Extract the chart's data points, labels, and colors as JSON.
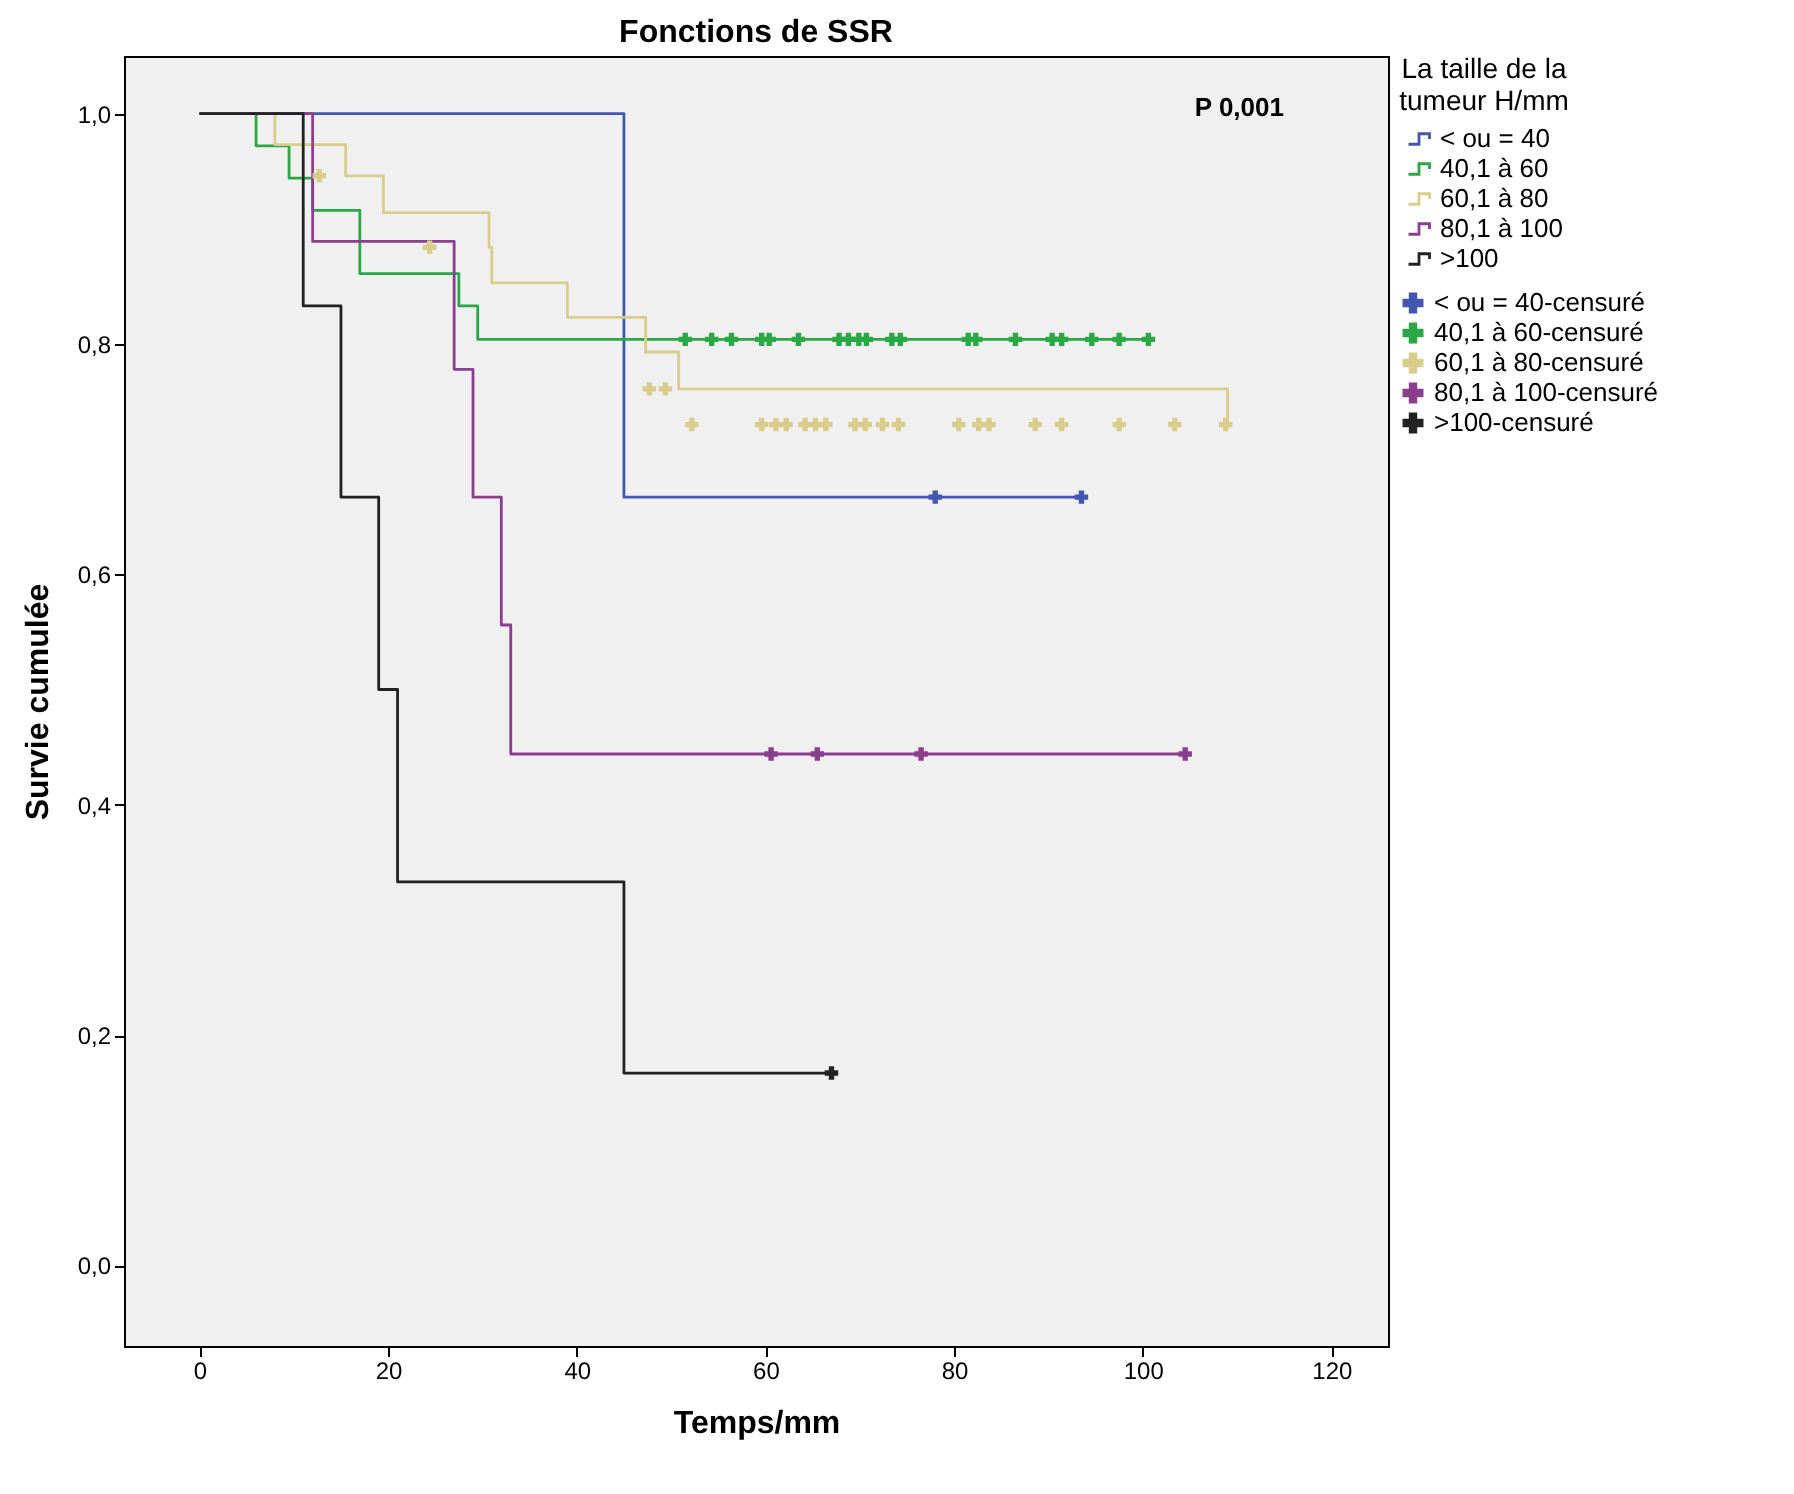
{
  "chart_data": {
    "type": "step",
    "title": "Fonctions de SSR",
    "xlabel": "Temps/mm",
    "ylabel": "Survie cumulée",
    "legend_title": "La taille de la tumeur H/mm",
    "legend": "right",
    "xlim": [
      -8,
      126
    ],
    "xticks": [
      0,
      20,
      40,
      60,
      80,
      100,
      120
    ],
    "ylim": [
      -0.07,
      1.05
    ],
    "yticks": [
      {
        "value": 0,
        "label": "0,0"
      },
      {
        "value": 0.2,
        "label": "0,2"
      },
      {
        "value": 0.4,
        "label": "0,4"
      },
      {
        "value": 0.6,
        "label": "0,6"
      },
      {
        "value": 0.8,
        "label": "0,8"
      },
      {
        "value": 1,
        "label": "1,0"
      }
    ],
    "annotations": [
      "P 0,001"
    ],
    "series": [
      {
        "name": "< ou = 40",
        "color": "#4356b0",
        "x": [
          0,
          45,
          94
        ],
        "values": [
          1,
          0.667,
          0.667
        ]
      },
      {
        "name": "40,1 à 60",
        "color": "#2aa845",
        "x": [
          0,
          6,
          9.5,
          12,
          17,
          27.5,
          29.5,
          101
        ],
        "values": [
          1,
          0.972,
          0.944,
          0.916,
          0.861,
          0.833,
          0.804,
          0.804
        ]
      },
      {
        "name": "60,1 à 80",
        "color": "#d9cd8c",
        "x": [
          0,
          8,
          15.5,
          19.5,
          30.7,
          31,
          39,
          47.3,
          50.8,
          109
        ],
        "values": [
          1,
          0.973,
          0.946,
          0.914,
          0.884,
          0.853,
          0.823,
          0.793,
          0.761,
          0.73
        ]
      },
      {
        "name": "80,1 à 100",
        "color": "#8b3d8e",
        "x": [
          0,
          12,
          27,
          29,
          32,
          33,
          105
        ],
        "values": [
          1,
          0.889,
          0.778,
          0.667,
          0.556,
          0.444,
          0.444
        ]
      },
      {
        "name": ">100",
        "color": "#222222",
        "x": [
          0,
          11,
          15,
          19,
          21,
          45,
          67
        ],
        "values": [
          1,
          0.833,
          0.667,
          0.5,
          0.333,
          0.167,
          0.167
        ]
      },
      {
        "type": "scatter",
        "marker": "cross",
        "name": "< ou = 40-censuré",
        "color": "#4356b0",
        "x": [
          78,
          93.5
        ],
        "values": [
          0.667,
          0.667
        ]
      },
      {
        "type": "scatter",
        "marker": "cross",
        "name": "40,1 à 60-censuré",
        "color": "#2aa845",
        "x": [
          51.5,
          54.3,
          56.4,
          59.6,
          60.4,
          63.5,
          67.8,
          68.8,
          69.9,
          70.7,
          73.4,
          74.3,
          81.5,
          82.3,
          86.5,
          90.4,
          91.4,
          94.6,
          97.5,
          100.6
        ],
        "values": [
          0.804,
          0.804,
          0.804,
          0.804,
          0.804,
          0.804,
          0.804,
          0.804,
          0.804,
          0.804,
          0.804,
          0.804,
          0.804,
          0.804,
          0.804,
          0.804,
          0.804,
          0.804,
          0.804,
          0.804
        ]
      },
      {
        "type": "scatter",
        "marker": "cross",
        "name": "60,1 à 80-censuré",
        "color": "#d9cd8c",
        "x": [
          12.7,
          24.4,
          47.7,
          49.4,
          52.2,
          59.6,
          61.1,
          62.2,
          64.2,
          65.3,
          66.4,
          69.5,
          70.6,
          72.4,
          74.1,
          80.5,
          82.6,
          83.7,
          88.6,
          91.4,
          97.5,
          103.4,
          108.8
        ],
        "values": [
          0.946,
          0.884,
          0.761,
          0.761,
          0.73,
          0.73,
          0.73,
          0.73,
          0.73,
          0.73,
          0.73,
          0.73,
          0.73,
          0.73,
          0.73,
          0.73,
          0.73,
          0.73,
          0.73,
          0.73,
          0.73,
          0.73,
          0.73
        ]
      },
      {
        "type": "scatter",
        "marker": "cross",
        "name": "80,1 à 100-censuré",
        "color": "#8b3d8e",
        "x": [
          60.6,
          65.5,
          76.5,
          104.5
        ],
        "values": [
          0.444,
          0.444,
          0.444,
          0.444
        ]
      },
      {
        "type": "scatter",
        "marker": "cross",
        "name": ">100-censuré",
        "color": "#222222",
        "x": [
          67
        ],
        "values": [
          0.167
        ]
      }
    ]
  }
}
